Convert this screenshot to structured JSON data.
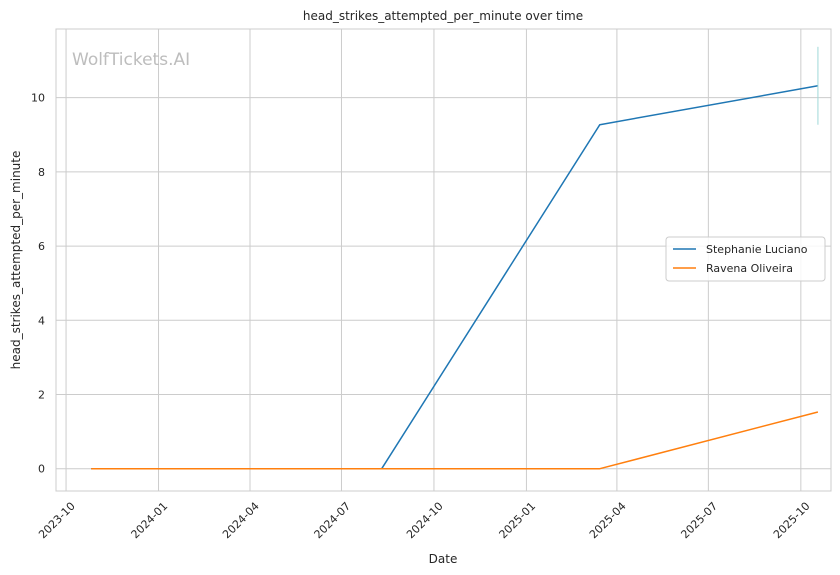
{
  "chart_data": {
    "type": "line",
    "title": "head_strikes_attempted_per_minute over time",
    "xlabel": "Date",
    "ylabel": "head_strikes_attempted_per_minute",
    "watermark": "WolfTickets.AI",
    "x_ticks": [
      "2023-10",
      "2024-01",
      "2024-04",
      "2024-07",
      "2024-10",
      "2025-01",
      "2025-04",
      "2025-07",
      "2025-10"
    ],
    "y_ticks": [
      0,
      2,
      4,
      6,
      8,
      10
    ],
    "xlim": [
      "2023-09-21",
      "2025-10-31"
    ],
    "ylim": [
      -0.6,
      11.85
    ],
    "grid": true,
    "legend_position": "center-right",
    "series": [
      {
        "name": "Stephanie Luciano",
        "color": "#1f77b4",
        "x": [
          "2023-10-26",
          "2024-08-10",
          "2025-03-15",
          "2025-10-18"
        ],
        "y": [
          0,
          0,
          9.27,
          10.32
        ]
      },
      {
        "name": "Ravena Oliveira",
        "color": "#ff7f0e",
        "x": [
          "2023-10-26",
          "2024-08-10",
          "2025-03-15",
          "2025-10-18"
        ],
        "y": [
          0,
          0,
          0,
          1.53
        ]
      }
    ],
    "error_bar": {
      "series": "Stephanie Luciano",
      "x": "2025-10-18",
      "low": 9.27,
      "high": 11.37
    }
  }
}
